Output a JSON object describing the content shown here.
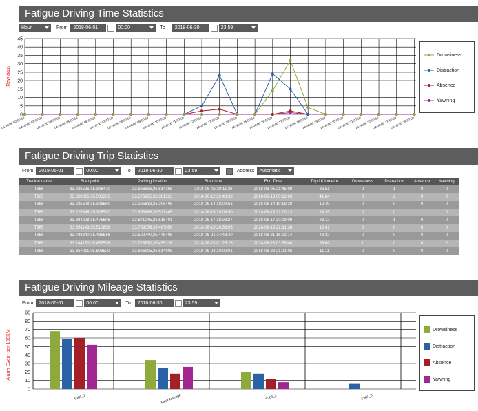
{
  "time_stats": {
    "title": "Fatigue Driving Time Statistics",
    "interval": "Hour",
    "from_label": "From",
    "from_date": "2018-06-01",
    "from_time": "00:00",
    "to_label": "To",
    "to_date": "2018-06-30",
    "to_time": "23:59"
  },
  "trip_stats": {
    "title": "Fatigue Driving Trip Statistics",
    "from_label": "From",
    "from_date": "2018-06-01",
    "from_time": "00:00",
    "to_label": "To",
    "to_date": "2018-06-30",
    "to_time": "23:59",
    "address_label": "Address",
    "address_mode": "Automatic",
    "columns": [
      "Tracker name",
      "Start point",
      "Parking location",
      "Start time",
      "End Time",
      "Trip / Kilometre",
      "Drowsiness",
      "Distraction",
      "Absence",
      "Yawning"
    ],
    "rows": [
      [
        "T366",
        "33.225595,35.306470",
        "33.866836,35.514265",
        "2018-06-05 20:11:26",
        "2018-06-05 21:45:08",
        "86.51",
        "0",
        "1",
        "0",
        "0"
      ],
      [
        "T366",
        "33.859825,35.505203",
        "33.576295,35.381523",
        "2018-06-12 22:43:38",
        "2018-06-13 00:12:03",
        "41.64",
        "0",
        "2",
        "0",
        "2"
      ],
      [
        "T366",
        "33.225608,35.306560",
        "33.225613,35.306406",
        "2018-06-14 18:09:58",
        "2018-06-14 19:19:38",
        "12.49",
        "0",
        "0",
        "0",
        "0"
      ],
      [
        "T366",
        "33.225648,35.306500",
        "33.858986,35.513405",
        "2018-06-16 19:09:50",
        "2018-06-16 21:10:23",
        "89.35",
        "0",
        "0",
        "1",
        "0"
      ],
      [
        "T366",
        "33.884228,35.475596",
        "33.871045,35.515401",
        "2018-06-17 18:28:27",
        "2018-06-17 20:09:09",
        "23.12",
        "0",
        "1",
        "0",
        "0"
      ],
      [
        "T366",
        "33.851143,35.510898",
        "33.789076,35.487056",
        "2018-06-19 20:36:05",
        "2018-06-19 21:31:36",
        "12.41",
        "0",
        "0",
        "0",
        "0"
      ],
      [
        "T366",
        "33.788340,35.488516",
        "33.509740,35.445405",
        "2018-06-21 14:48:40",
        "2018-06-21 16:02:14",
        "43.32",
        "0",
        "0",
        "0",
        "0"
      ],
      [
        "T366",
        "33.184160,35.457598",
        "33.723670,35.455226",
        "2018-06-23 01:25:25",
        "2018-06-23 03:59:08",
        "85.69",
        "1",
        "0",
        "0",
        "2"
      ],
      [
        "T366",
        "33.857211,35.506520",
        "33.866905,35.514008",
        "2018-06-23 20:02:01",
        "2018-06-23 21:01:05",
        "11.11",
        "0",
        "0",
        "0",
        "0"
      ]
    ]
  },
  "mileage_stats": {
    "title": "Fatigue Driving Mileage Statistics",
    "from_label": "From",
    "from_date": "2018-06-01",
    "from_time": "00:00",
    "to_label": "To",
    "to_date": "2018-06-30",
    "to_time": "23:59"
  },
  "colors": {
    "drowsiness": "#8faa3c",
    "distraction": "#2a62a8",
    "absence": "#a32027",
    "yawning": "#a1278f"
  },
  "chart_data": [
    {
      "type": "line",
      "ylabel": "Raw data",
      "ylim": [
        0,
        45
      ],
      "yticks": [
        0,
        5,
        10,
        15,
        20,
        25,
        30,
        35,
        40,
        45
      ],
      "categories": [
        "01:00:00-02:00:00",
        "02:00:00-03:00:00",
        "03:00:00-04:00:00",
        "04:00:00-05:00:00",
        "05:00:00-06:00:00",
        "06:00:00-07:00:00",
        "07:00:00-08:00:00",
        "08:00:00-09:00:00",
        "09:00:00-10:00:00",
        "10:00:00-11:00:00",
        "11:00:00-12:00:00",
        "12:00:00-13:00:00",
        "13:00:00-14:00:00",
        "14:00:00-15:00:00",
        "15:00:00-16:00:00",
        "16:00:00-17:00:00",
        "17:00:00-18:00:00",
        "18:00:00-19:00:00",
        "19:00:00-20:00:00",
        "20:00:00-21:00:00",
        "21:00:00-22:00:00",
        "22:00:00-23:00:00",
        "23:00:00-24:00:00"
      ],
      "series": [
        {
          "name": "Drowsiness",
          "values": [
            0,
            0,
            0,
            0,
            0,
            0,
            0,
            0,
            0,
            0,
            0,
            0,
            0,
            0,
            14,
            32,
            4,
            0,
            0,
            0,
            0,
            0,
            0
          ]
        },
        {
          "name": "Distraction",
          "values": [
            0,
            0,
            0,
            0,
            0,
            0,
            0,
            0,
            0,
            0,
            5,
            23,
            0,
            0,
            24,
            15,
            0,
            0,
            0,
            0,
            0,
            0,
            0
          ]
        },
        {
          "name": "Absence",
          "values": [
            0,
            0,
            0,
            0,
            0,
            0,
            0,
            0,
            0,
            0,
            2,
            3,
            0,
            0,
            0,
            2,
            0,
            0,
            0,
            0,
            0,
            0,
            0
          ]
        },
        {
          "name": "Yawning",
          "values": [
            0,
            0,
            0,
            0,
            0,
            0,
            0,
            0,
            0,
            0,
            0,
            0,
            0,
            0,
            0,
            1,
            0,
            0,
            0,
            0,
            0,
            0,
            0
          ]
        }
      ],
      "legend": "right"
    },
    {
      "type": "bar",
      "ylabel": "Alarm Event per 100KM",
      "ylim": [
        0,
        90
      ],
      "yticks": [
        0,
        10,
        20,
        30,
        40,
        50,
        60,
        70,
        80,
        90
      ],
      "categories": [
        "T366_1",
        "Fleet Average",
        "T366_2",
        "T366_3"
      ],
      "series": [
        {
          "name": "Drowsiness",
          "values": [
            68,
            34,
            20,
            0
          ]
        },
        {
          "name": "Distraction",
          "values": [
            59,
            25,
            18,
            6
          ]
        },
        {
          "name": "Absence",
          "values": [
            60,
            18,
            12,
            0
          ]
        },
        {
          "name": "Yawning",
          "values": [
            52,
            26,
            8,
            0
          ]
        }
      ],
      "legend": "right"
    }
  ]
}
